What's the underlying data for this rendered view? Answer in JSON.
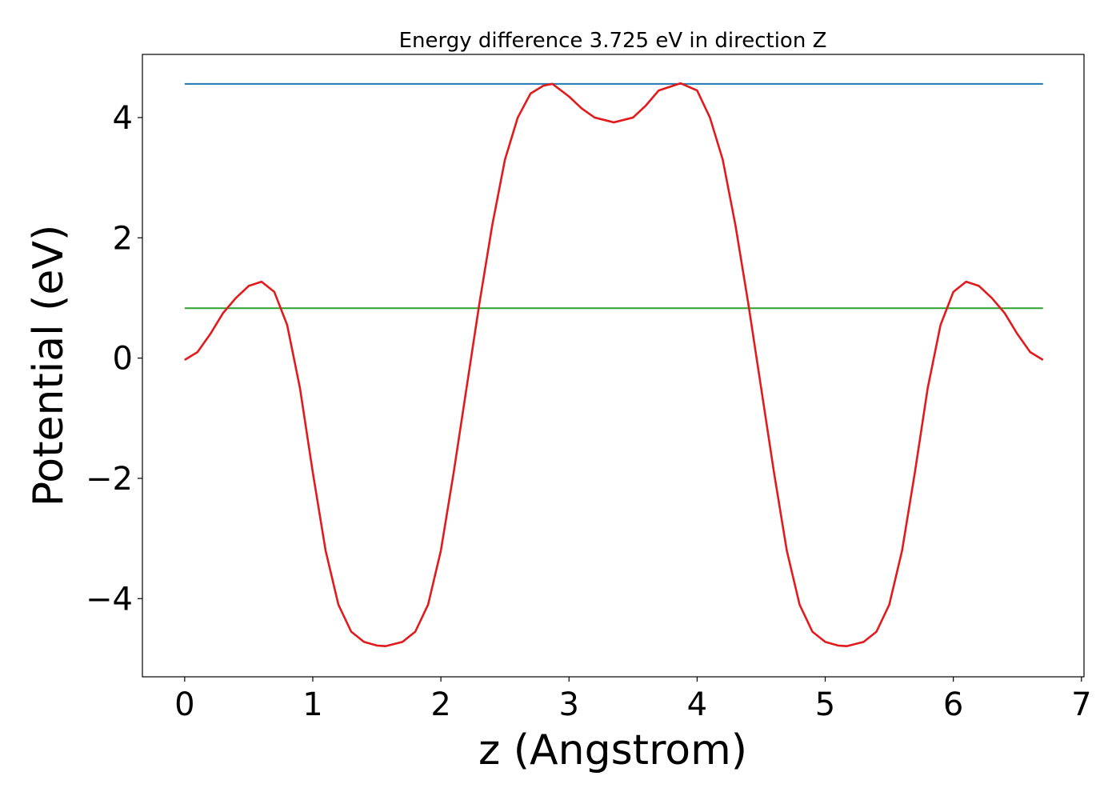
{
  "chart_data": {
    "type": "line",
    "title": "Energy difference 3.725 eV in direction Z",
    "xlabel": "z (Angstrom)",
    "ylabel": "Potential (eV)",
    "xlim": [
      -0.33,
      7.02
    ],
    "ylim": [
      -5.3,
      5.05
    ],
    "xticks": [
      0,
      1,
      2,
      3,
      4,
      5,
      6,
      7
    ],
    "xtick_labels": [
      "0",
      "1",
      "2",
      "3",
      "4",
      "5",
      "6",
      "7"
    ],
    "yticks": [
      -4,
      -2,
      0,
      2,
      4
    ],
    "ytick_labels": [
      "−4",
      "−2",
      "0",
      "2",
      "4"
    ],
    "grid": false,
    "legend": "none",
    "series": [
      {
        "color": "#1f77b4",
        "x": [
          0,
          6.7
        ],
        "y": [
          4.56,
          4.56
        ]
      },
      {
        "color": "#2ca02c",
        "x": [
          0,
          6.7
        ],
        "y": [
          0.83,
          0.83
        ]
      },
      {
        "color": "#e31a1c",
        "x": [
          0,
          0.1,
          0.2,
          0.3,
          0.4,
          0.5,
          0.6,
          0.7,
          0.8,
          0.9,
          1.0,
          1.1,
          1.2,
          1.3,
          1.4,
          1.5,
          1.57,
          1.7,
          1.8,
          1.9,
          2.0,
          2.1,
          2.2,
          2.3,
          2.4,
          2.5,
          2.6,
          2.7,
          2.8,
          2.87,
          3.0,
          3.1,
          3.2,
          3.35,
          3.5,
          3.6,
          3.7,
          3.87,
          4.0,
          4.1,
          4.2,
          4.3,
          4.4,
          4.5,
          4.6,
          4.7,
          4.8,
          4.9,
          5.0,
          5.1,
          5.17,
          5.3,
          5.4,
          5.5,
          5.6,
          5.7,
          5.8,
          5.9,
          6.0,
          6.1,
          6.2,
          6.3,
          6.4,
          6.5,
          6.6,
          6.7
        ],
        "y": [
          -0.03,
          0.1,
          0.4,
          0.75,
          1.0,
          1.2,
          1.27,
          1.1,
          0.55,
          -0.5,
          -1.9,
          -3.2,
          -4.1,
          -4.55,
          -4.72,
          -4.78,
          -4.79,
          -4.72,
          -4.55,
          -4.1,
          -3.2,
          -1.9,
          -0.5,
          0.9,
          2.2,
          3.3,
          4.0,
          4.4,
          4.53,
          4.56,
          4.35,
          4.15,
          4.0,
          3.92,
          4.0,
          4.2,
          4.45,
          4.57,
          4.45,
          4.0,
          3.3,
          2.2,
          0.9,
          -0.5,
          -1.9,
          -3.2,
          -4.1,
          -4.55,
          -4.72,
          -4.78,
          -4.79,
          -4.72,
          -4.55,
          -4.1,
          -3.2,
          -1.9,
          -0.5,
          0.55,
          1.1,
          1.27,
          1.2,
          1.0,
          0.75,
          0.4,
          0.1,
          -0.03
        ]
      }
    ]
  }
}
